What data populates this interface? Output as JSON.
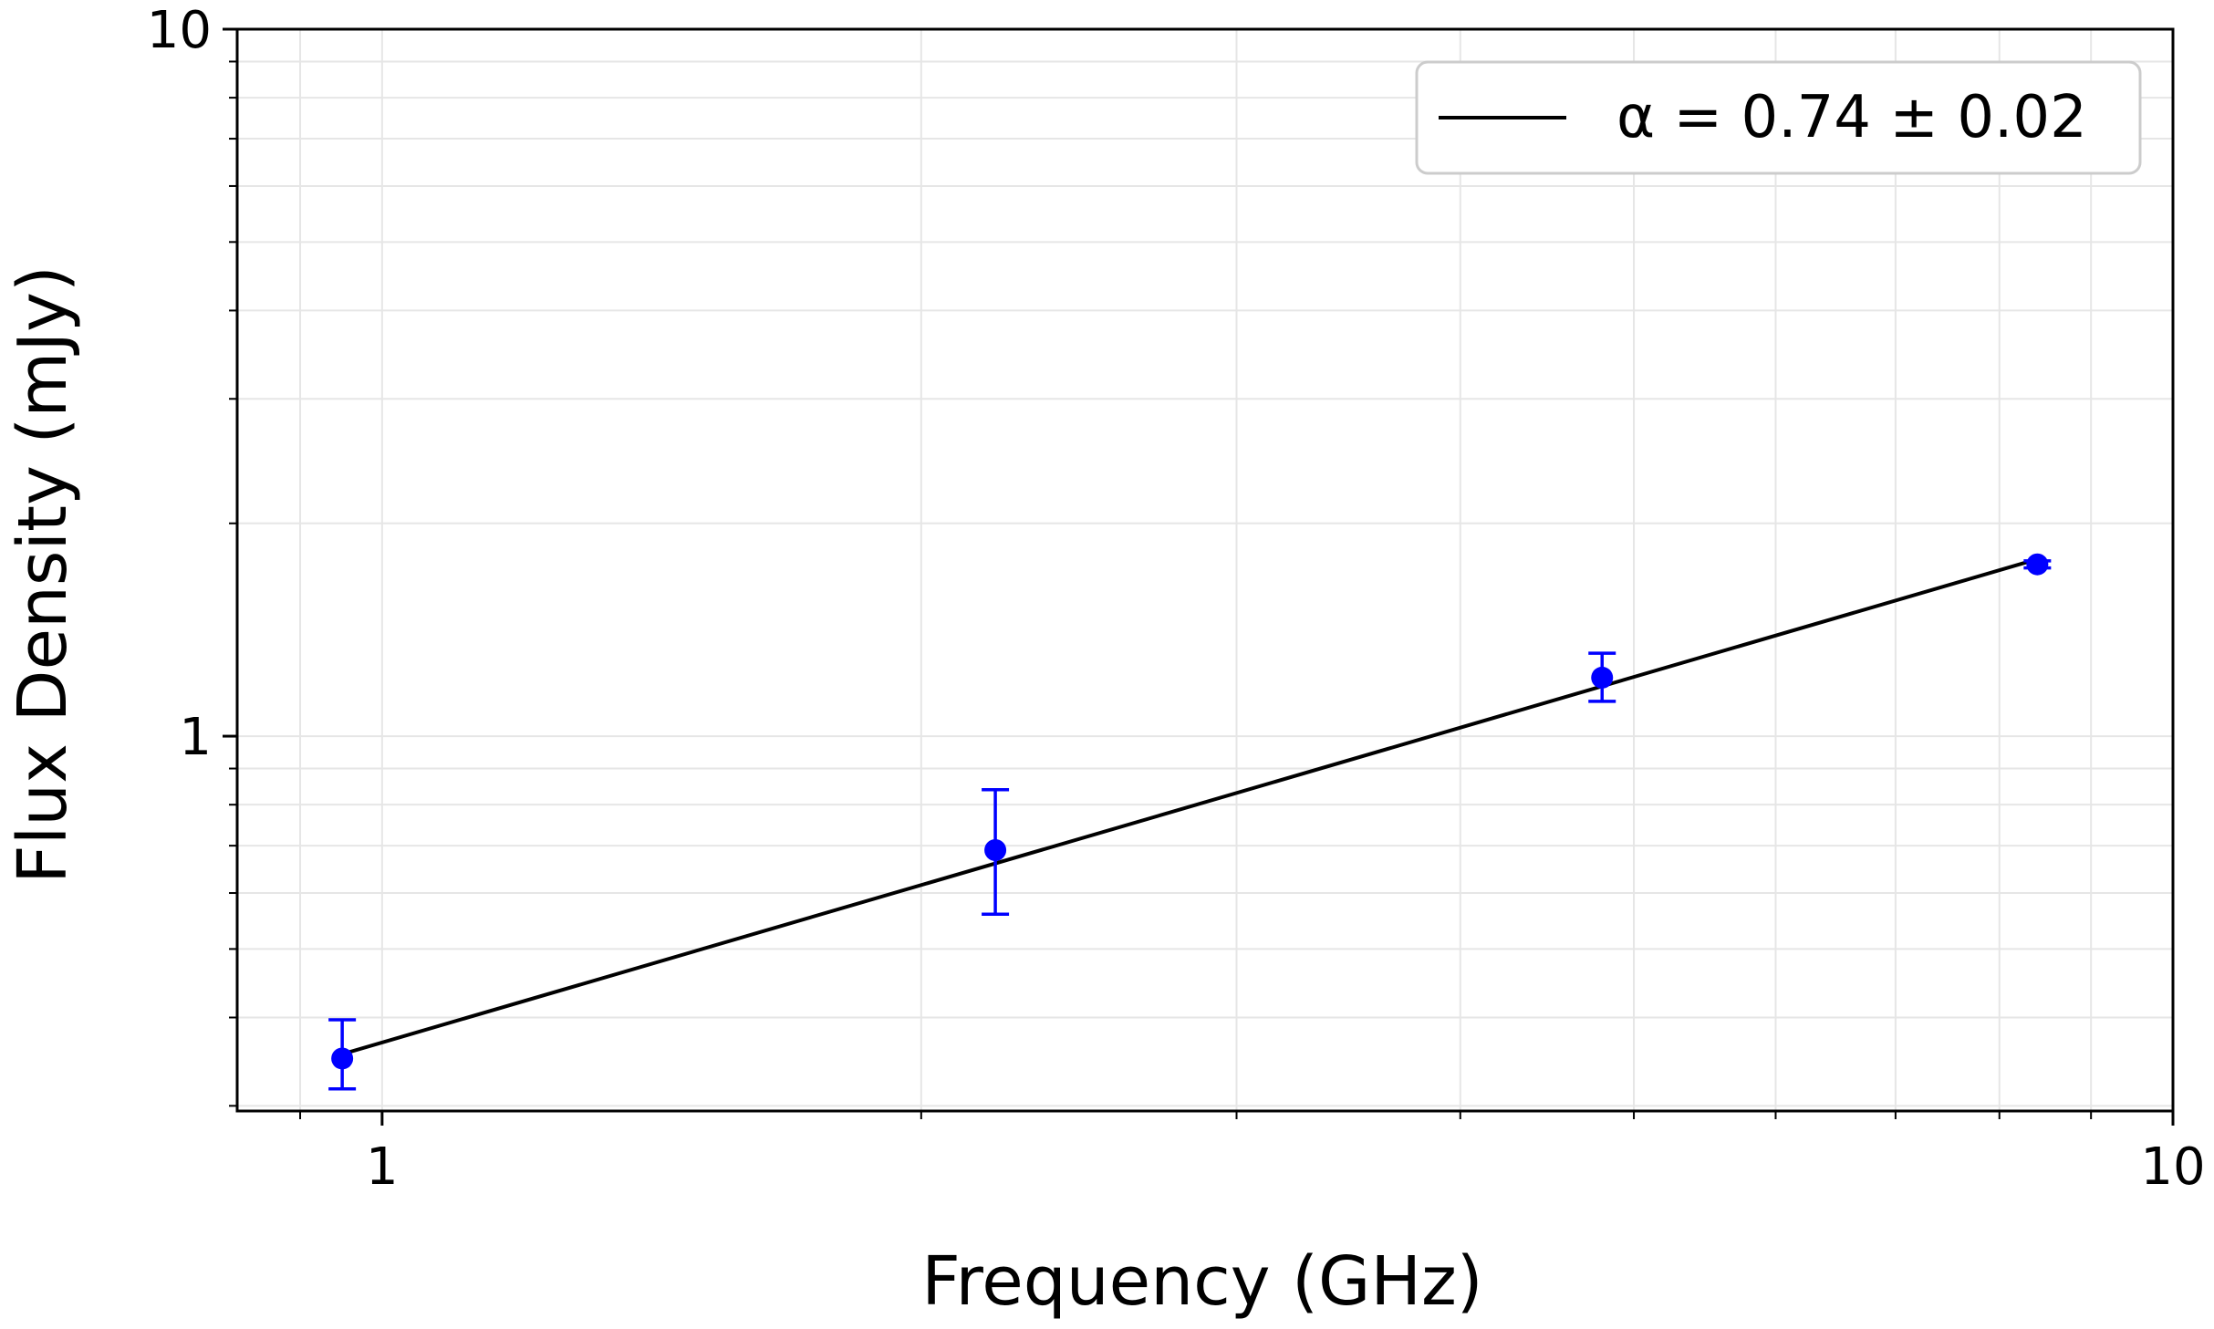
{
  "chart_data": {
    "type": "scatter",
    "title": "",
    "xlabel": "Frequency (GHz)",
    "ylabel": "Flux Density (mJy)",
    "xscale": "log",
    "yscale": "log",
    "xlim": [
      0.83,
      10
    ],
    "ylim": [
      0.295,
      10
    ],
    "grid": true,
    "legend_position": "upper right",
    "x_ticks": [
      {
        "value": 1,
        "label": "1"
      },
      {
        "value": 10,
        "label": "10"
      }
    ],
    "y_ticks": [
      {
        "value": 1,
        "label": "1"
      },
      {
        "value": 10,
        "label": "10"
      }
    ],
    "colors": {
      "points": "#0000ff",
      "fit": "#000000",
      "grid": "#e6e6e6"
    },
    "points": [
      {
        "x": 0.95,
        "y": 0.35,
        "yerr_low": 0.033,
        "yerr_high": 0.047
      },
      {
        "x": 2.2,
        "y": 0.69,
        "yerr_low": 0.13,
        "yerr_high": 0.15
      },
      {
        "x": 4.8,
        "y": 1.21,
        "yerr_low": 0.09,
        "yerr_high": 0.1
      },
      {
        "x": 8.4,
        "y": 1.75,
        "yerr_low": 0.02,
        "yerr_high": 0.02
      }
    ],
    "fit_line": {
      "label": "α = 0.74 ± 0.02",
      "x": [
        0.95,
        8.4
      ],
      "y": [
        0.355,
        1.78
      ]
    }
  }
}
